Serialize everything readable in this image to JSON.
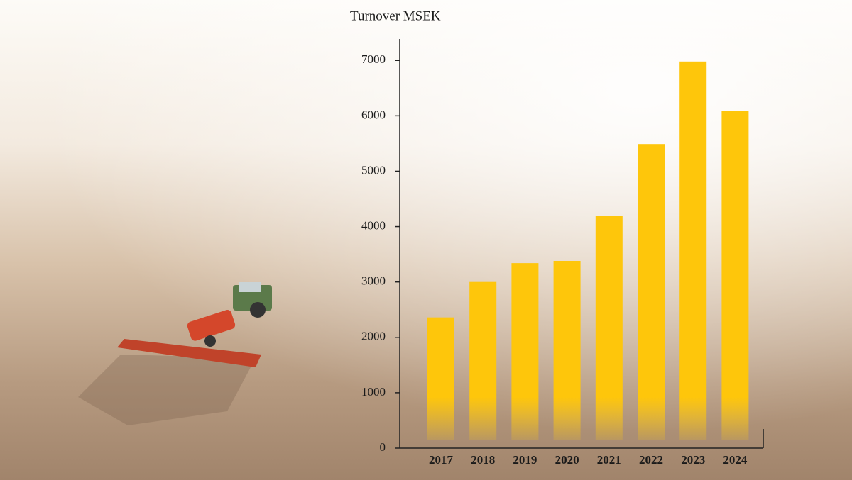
{
  "chart_data": {
    "type": "bar",
    "title": "Turnover MSEK",
    "categories": [
      "2017",
      "2018",
      "2019",
      "2020",
      "2021",
      "2022",
      "2023",
      "2024"
    ],
    "values": [
      2360,
      3000,
      3340,
      3380,
      4190,
      5490,
      6980,
      6090
    ],
    "color": "#fec60b",
    "ylim": [
      0,
      7400
    ],
    "yticks": [
      0,
      1000,
      2000,
      3000,
      4000,
      5000,
      6000,
      7000
    ],
    "grid": false
  }
}
